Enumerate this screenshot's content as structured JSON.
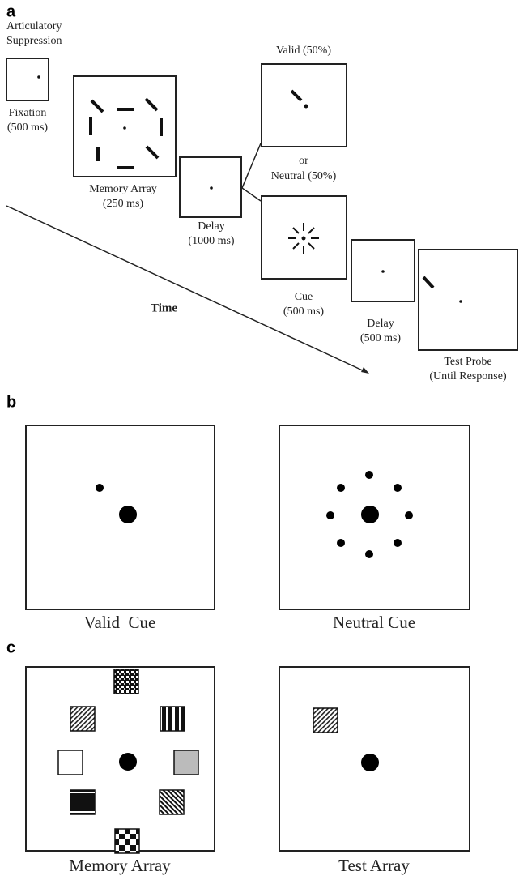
{
  "panel_labels": [
    "a",
    "b",
    "c"
  ],
  "panel_a": {
    "header": [
      "Articulatory",
      "Suppression"
    ],
    "fixation": [
      "Fixation",
      "(500 ms)"
    ],
    "memory_array": [
      "Memory Array",
      "(250 ms)"
    ],
    "delay_1": [
      "Delay",
      "(1000 ms)"
    ],
    "valid": "Valid (50%)",
    "or": "or",
    "neutral": "Neutral (50%)",
    "cue": [
      "Cue",
      "(500 ms)"
    ],
    "delay_2": [
      "Delay",
      "(500 ms)"
    ],
    "test_probe": [
      "Test Probe",
      "(Until Response)"
    ],
    "time": "Time"
  },
  "panel_b": {
    "valid_cue": "Valid  Cue",
    "neutral_cue": "Neutral Cue"
  },
  "panel_c": {
    "memory_array": "Memory Array",
    "test_array": "Test Array"
  }
}
